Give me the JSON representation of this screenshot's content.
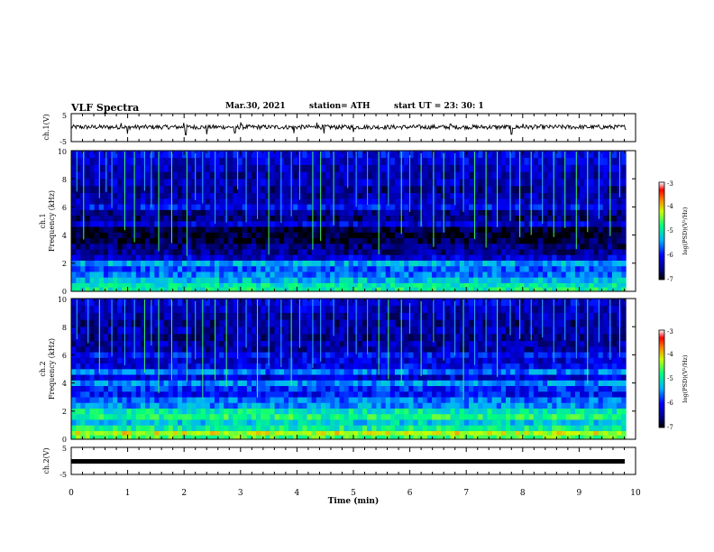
{
  "header": {
    "title": "VLF Spectra",
    "date": "Mar.30, 2021",
    "station": "station= ATH",
    "start": "start  UT  =   23: 30: 1"
  },
  "panels": {
    "ch1_wave": {
      "label": "ch.1(V)",
      "ticks": [
        "5",
        "-5"
      ]
    },
    "ch1_spec": {
      "label1": "ch.1",
      "label2": "Frequency (kHz)",
      "yticks": [
        "10",
        "8",
        "6",
        "4",
        "2",
        "0"
      ]
    },
    "ch2_spec": {
      "label1": "ch.2",
      "label2": "Frequency (kHz)",
      "yticks": [
        "10",
        "8",
        "6",
        "4",
        "2",
        "0"
      ]
    },
    "ch2_wave": {
      "label": "ch.2(V)",
      "ticks": [
        "5",
        "-5"
      ]
    }
  },
  "colorbars": {
    "ticks": [
      "-3",
      "-4",
      "-5",
      "-6",
      "-7"
    ],
    "label": "log(PSD)(V²/Hz)"
  },
  "x_axis": {
    "label": "Time (min)",
    "ticks": [
      "0",
      "1",
      "2",
      "3",
      "4",
      "5",
      "6",
      "7",
      "8",
      "9",
      "10"
    ]
  },
  "chart_data": [
    {
      "type": "line",
      "title": "",
      "ylabel": "ch.1(V)",
      "xlabel": "",
      "xlim": [
        0,
        10
      ],
      "ylim": [
        -5,
        5
      ],
      "data_end_min": 9.83,
      "baseline_v": 0.2,
      "noise_amplitude_v": 0.8,
      "spike_times_min": [
        0.88,
        1.0,
        2.0,
        2.03,
        2.4,
        2.9,
        3.0,
        3.95,
        4.35,
        4.48,
        5.0,
        6.72,
        7.8,
        8.0,
        9.88
      ],
      "spike_values_v": [
        1.6,
        -2.2,
        1.7,
        -2.6,
        -2.4,
        -1.9,
        1.9,
        -2.0,
        1.8,
        -2.1,
        -1.6,
        1.3,
        -2.4,
        1.4,
        1.8
      ]
    },
    {
      "type": "heatmap",
      "title": "",
      "ylabel": "Frequency (kHz)",
      "xlabel": "",
      "xlim": [
        0,
        10
      ],
      "ylim": [
        0,
        10
      ],
      "colorscale": "jet",
      "clim": [
        -7,
        -3
      ],
      "data_end_min": 9.83,
      "freq_bins_khz": [
        0.3,
        0.6,
        1.0,
        1.4,
        1.8,
        2.2,
        2.6,
        3.0,
        3.4,
        3.8,
        4.2,
        4.6,
        5.0,
        5.4,
        5.8,
        6.2,
        6.6,
        7.0,
        7.5,
        8.0,
        8.5,
        9.0,
        9.5,
        10.0
      ],
      "log_psd_profile": [
        -4.9,
        -5.0,
        -5.3,
        -5.6,
        -5.7,
        -5.4,
        -6.2,
        -6.5,
        -6.6,
        -6.8,
        -6.9,
        -6.8,
        -6.2,
        -6.6,
        -6.5,
        -6.0,
        -6.3,
        -6.4,
        -6.5,
        -6.3,
        -6.4,
        -6.3,
        -6.2,
        -6.1
      ],
      "impulse_times_min": [
        0.1,
        0.22,
        0.5,
        0.62,
        0.72,
        0.95,
        1.12,
        1.3,
        1.42,
        1.55,
        1.78,
        2.05,
        2.2,
        2.33,
        2.55,
        2.75,
        2.95,
        3.1,
        3.3,
        3.5,
        3.72,
        3.9,
        4.05,
        4.28,
        4.42,
        4.65,
        4.9,
        5.05,
        5.25,
        5.45,
        5.62,
        5.85,
        6.0,
        6.2,
        6.42,
        6.6,
        6.8,
        6.95,
        7.15,
        7.35,
        7.55,
        7.78,
        7.95,
        8.15,
        8.35,
        8.55,
        8.75,
        8.95,
        9.15,
        9.35,
        9.55,
        9.72
      ]
    },
    {
      "type": "heatmap",
      "title": "",
      "ylabel": "Frequency (kHz)",
      "xlabel": "",
      "xlim": [
        0,
        10
      ],
      "ylim": [
        0,
        10
      ],
      "colorscale": "jet",
      "clim": [
        -7,
        -3
      ],
      "data_end_min": 9.83,
      "freq_bins_khz": [
        0.3,
        0.6,
        1.0,
        1.4,
        1.8,
        2.2,
        2.6,
        3.0,
        3.4,
        3.8,
        4.2,
        4.6,
        5.0,
        5.4,
        5.8,
        6.2,
        6.6,
        7.0,
        7.5,
        8.0,
        8.5,
        9.0,
        9.5,
        10.0
      ],
      "log_psd_profile": [
        -4.6,
        -4.2,
        -4.9,
        -5.2,
        -4.8,
        -5.0,
        -5.5,
        -5.6,
        -6.0,
        -5.9,
        -5.5,
        -6.2,
        -5.6,
        -6.1,
        -6.2,
        -6.0,
        -6.4,
        -6.4,
        -6.5,
        -6.4,
        -6.5,
        -6.4,
        -6.3,
        -6.2
      ],
      "impulse_times_min": [
        0.1,
        0.3,
        0.5,
        0.72,
        0.95,
        1.12,
        1.3,
        1.42,
        1.55,
        1.78,
        2.05,
        2.2,
        2.33,
        2.55,
        2.75,
        2.95,
        3.1,
        3.3,
        3.5,
        3.72,
        3.9,
        4.05,
        4.28,
        4.42,
        4.65,
        4.9,
        5.05,
        5.25,
        5.45,
        5.62,
        5.85,
        6.0,
        6.2,
        6.42,
        6.6,
        6.8,
        6.95,
        7.15,
        7.35,
        7.55,
        7.78,
        7.95,
        8.15,
        8.35,
        8.55,
        8.75,
        8.95,
        9.15,
        9.35,
        9.55,
        9.72
      ]
    },
    {
      "type": "line",
      "title": "",
      "ylabel": "ch.2(V)",
      "xlabel": "Time (min)",
      "xlim": [
        0,
        10
      ],
      "ylim": [
        -5,
        5
      ],
      "data_end_min": 9.83,
      "baseline_v": 0.0,
      "noise_amplitude_v": 0.9
    }
  ],
  "colors": {
    "background": "#ffffff",
    "axes": "#000000",
    "trace": "#000000"
  }
}
